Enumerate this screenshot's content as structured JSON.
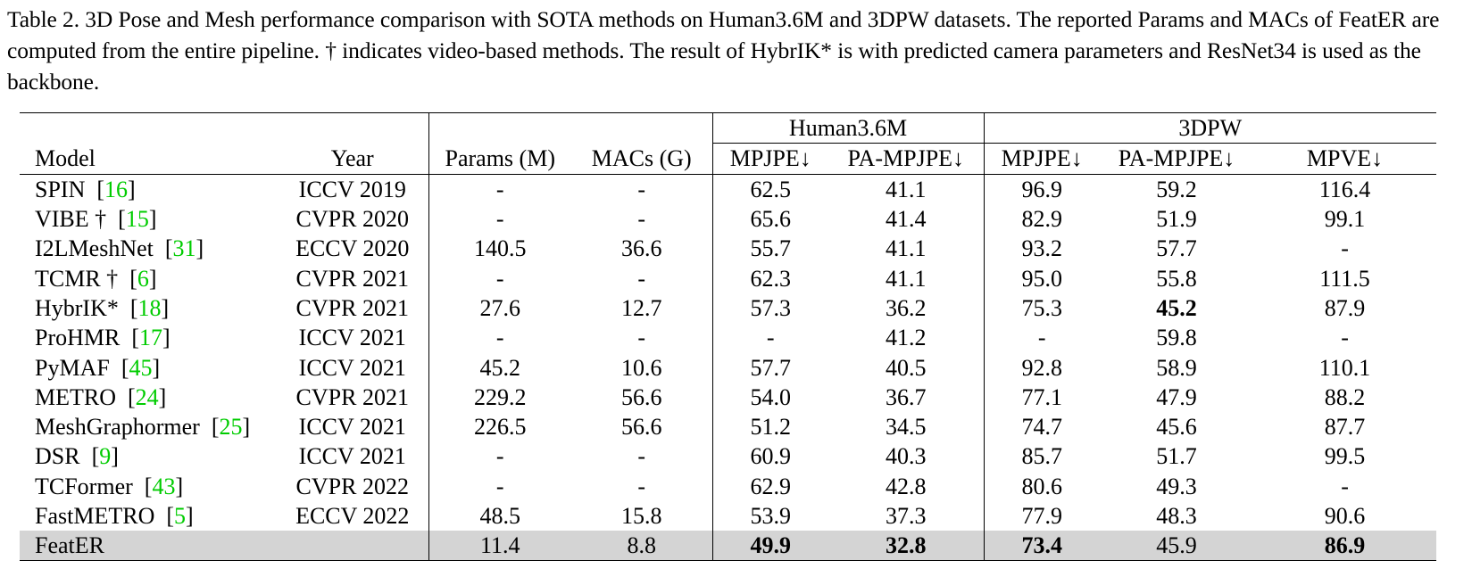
{
  "caption": "Table 2. 3D Pose and Mesh performance comparison with SOTA methods on Human3.6M and 3DPW datasets. The reported Params and MACs of FeatER are computed from the entire pipeline. † indicates video-based methods. The result of HybrIK* is with predicted camera parameters and ResNet34 is used as the backbone.",
  "groups": {
    "h36m": "Human3.6M",
    "pw3d": "3DPW"
  },
  "headers": {
    "model": "Model",
    "year": "Year",
    "params": "Params (M)",
    "macs": "MACs (G)",
    "h36m_mpjpe": "MPJPE↓",
    "h36m_pampjpe": "PA-MPJPE↓",
    "pw3d_mpjpe": "MPJPE↓",
    "pw3d_pampjpe": "PA-MPJPE↓",
    "pw3d_mpve": "MPVE↓"
  },
  "rows": [
    {
      "model": "SPIN",
      "cite": "16",
      "year": "ICCV 2019",
      "params": "-",
      "macs": "-",
      "h36m_mpjpe": "62.5",
      "h36m_pampjpe": "41.1",
      "pw3d_mpjpe": "96.9",
      "pw3d_pampjpe": "59.2",
      "pw3d_mpve": "116.4"
    },
    {
      "model": "VIBE †",
      "cite": "15",
      "year": "CVPR 2020",
      "params": "-",
      "macs": "-",
      "h36m_mpjpe": "65.6",
      "h36m_pampjpe": "41.4",
      "pw3d_mpjpe": "82.9",
      "pw3d_pampjpe": "51.9",
      "pw3d_mpve": "99.1"
    },
    {
      "model": "I2LMeshNet",
      "cite": "31",
      "year": "ECCV 2020",
      "params": "140.5",
      "macs": "36.6",
      "h36m_mpjpe": "55.7",
      "h36m_pampjpe": "41.1",
      "pw3d_mpjpe": "93.2",
      "pw3d_pampjpe": "57.7",
      "pw3d_mpve": "-"
    },
    {
      "model": "TCMR †",
      "cite": "6",
      "year": "CVPR 2021",
      "params": "-",
      "macs": "-",
      "h36m_mpjpe": "62.3",
      "h36m_pampjpe": "41.1",
      "pw3d_mpjpe": "95.0",
      "pw3d_pampjpe": "55.8",
      "pw3d_mpve": "111.5"
    },
    {
      "model": "HybrIK*",
      "cite": "18",
      "year": "CVPR 2021",
      "params": "27.6",
      "macs": "12.7",
      "h36m_mpjpe": "57.3",
      "h36m_pampjpe": "36.2",
      "pw3d_mpjpe": "75.3",
      "pw3d_pampjpe": "45.2",
      "pw3d_mpve": "87.9"
    },
    {
      "model": "ProHMR",
      "cite": "17",
      "year": "ICCV 2021",
      "params": "-",
      "macs": "-",
      "h36m_mpjpe": "-",
      "h36m_pampjpe": "41.2",
      "pw3d_mpjpe": "-",
      "pw3d_pampjpe": "59.8",
      "pw3d_mpve": "-"
    },
    {
      "model": "PyMAF",
      "cite": "45",
      "year": "ICCV 2021",
      "params": "45.2",
      "macs": "10.6",
      "h36m_mpjpe": "57.7",
      "h36m_pampjpe": "40.5",
      "pw3d_mpjpe": "92.8",
      "pw3d_pampjpe": "58.9",
      "pw3d_mpve": "110.1"
    },
    {
      "model": "METRO",
      "cite": "24",
      "year": "CVPR 2021",
      "params": "229.2",
      "macs": "56.6",
      "h36m_mpjpe": "54.0",
      "h36m_pampjpe": "36.7",
      "pw3d_mpjpe": "77.1",
      "pw3d_pampjpe": "47.9",
      "pw3d_mpve": "88.2"
    },
    {
      "model": "MeshGraphormer",
      "cite": "25",
      "year": "ICCV 2021",
      "params": "226.5",
      "macs": "56.6",
      "h36m_mpjpe": "51.2",
      "h36m_pampjpe": "34.5",
      "pw3d_mpjpe": "74.7",
      "pw3d_pampjpe": "45.6",
      "pw3d_mpve": "87.7"
    },
    {
      "model": "DSR",
      "cite": "9",
      "year": "ICCV 2021",
      "params": "-",
      "macs": "-",
      "h36m_mpjpe": "60.9",
      "h36m_pampjpe": "40.3",
      "pw3d_mpjpe": "85.7",
      "pw3d_pampjpe": "51.7",
      "pw3d_mpve": "99.5"
    },
    {
      "model": "TCFormer",
      "cite": "43",
      "year": "CVPR 2022",
      "params": "-",
      "macs": "-",
      "h36m_mpjpe": "62.9",
      "h36m_pampjpe": "42.8",
      "pw3d_mpjpe": "80.6",
      "pw3d_pampjpe": "49.3",
      "pw3d_mpve": "-"
    },
    {
      "model": "FastMETRO",
      "cite": "5",
      "year": "ECCV 2022",
      "params": "48.5",
      "macs": "15.8",
      "h36m_mpjpe": "53.9",
      "h36m_pampjpe": "37.3",
      "pw3d_mpjpe": "77.9",
      "pw3d_pampjpe": "48.3",
      "pw3d_mpve": "90.6"
    }
  ],
  "ours": {
    "model": "FeatER",
    "year": "",
    "params": "11.4",
    "macs": "8.8",
    "h36m_mpjpe": "49.9",
    "h36m_pampjpe": "32.8",
    "pw3d_mpjpe": "73.4",
    "pw3d_pampjpe": "45.9",
    "pw3d_mpve": "86.9"
  },
  "colors": {
    "cite": "#00cc00",
    "highlight_row": "#d4d4d4"
  }
}
